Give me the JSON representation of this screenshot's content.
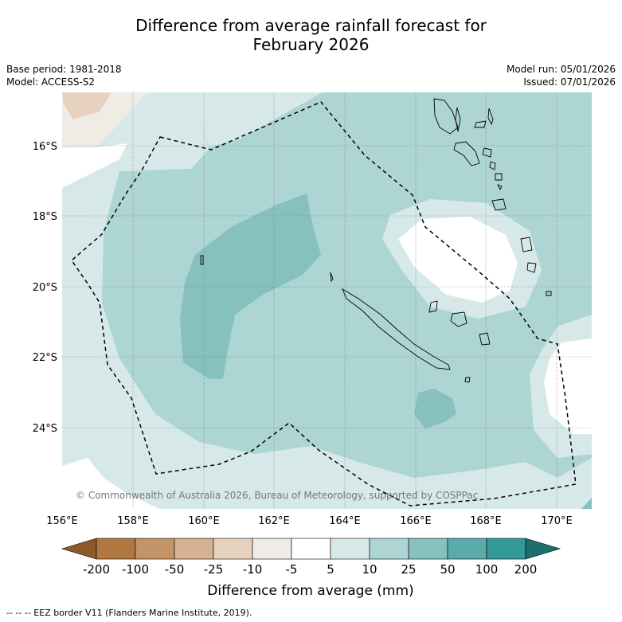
{
  "title_line1": "Difference from average rainfall forecast for",
  "title_line2": "February 2026",
  "base_period": "Base period: 1981-2018",
  "model": "Model: ACCESS-S2",
  "model_run": "Model run: 05/01/2026",
  "issued": "Issued: 07/01/2026",
  "copyright": "© Commonwealth of Australia 2026, Bureau of Meteorology, supported by COSPPac",
  "lat_labels": [
    "16°S",
    "18°S",
    "20°S",
    "22°S",
    "24°S"
  ],
  "lon_labels": [
    "156°E",
    "158°E",
    "160°E",
    "162°E",
    "164°E",
    "166°E",
    "168°E",
    "170°E"
  ],
  "colorbar": {
    "ticks": [
      "-200",
      "-100",
      "-50",
      "-25",
      "-10",
      "-5",
      "5",
      "10",
      "25",
      "50",
      "100",
      "200"
    ],
    "colors": [
      "#8c5a2a",
      "#b0783e",
      "#c49466",
      "#d6b293",
      "#e6d2bf",
      "#efebe5",
      "#ffffff",
      "#d6e9e8",
      "#add5d4",
      "#86c0bf",
      "#5aabaa",
      "#349a97",
      "#1d6f6b"
    ],
    "label": "Difference from average (mm)"
  },
  "legend_note": "-- -- -- EEZ border V11 (Flanders Marine Institute, 2019)."
}
